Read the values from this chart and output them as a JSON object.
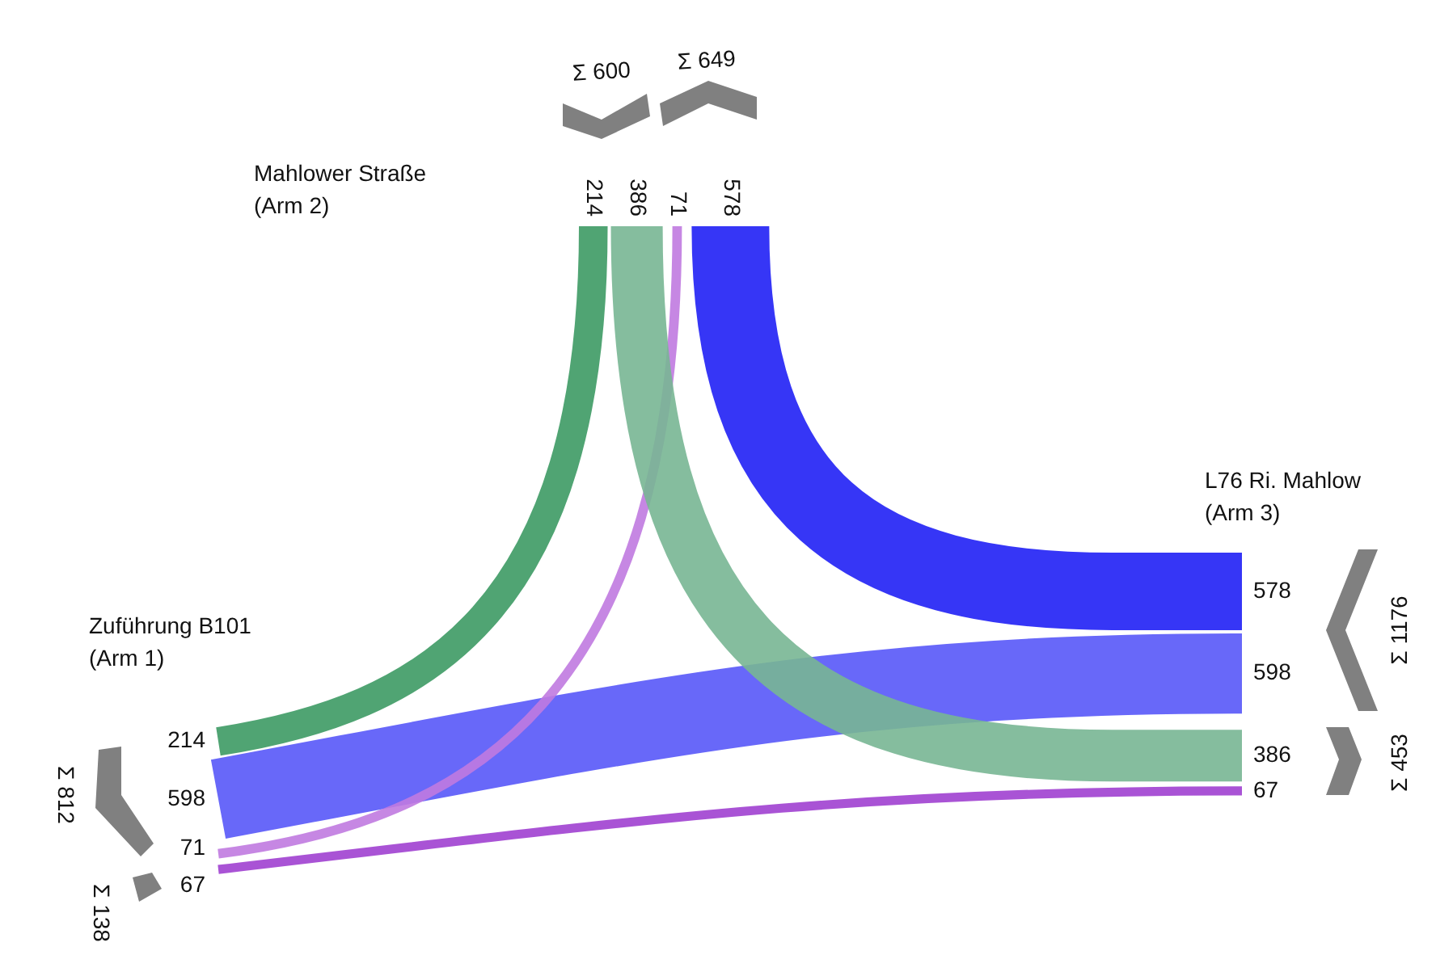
{
  "chart_data": {
    "type": "other",
    "categories": [
      "Zuführung B101\n(Arm 1)",
      "Mahlower Straße\n(Arm 2)",
      "L76 Ri. Mahlow\n(Arm 3)"
    ],
    "series": [
      {
        "color": "#3d9a64",
        "values": [
          214,
          214,
          null
        ]
      },
      {
        "color": "#78b694",
        "values": [
          null,
          386,
          386
        ]
      },
      {
        "color": "#c07ae0",
        "values": [
          71,
          71,
          null
        ]
      },
      {
        "color": "#2020f5",
        "values": [
          null,
          578,
          578
        ]
      },
      {
        "color": "#5858f8",
        "values": [
          598,
          null,
          598
        ]
      },
      {
        "color": "#a040d0",
        "values": [
          67,
          null,
          67
        ]
      }
    ],
    "annotations": [
      "Σ 812",
      "Σ 138",
      "Σ 600",
      "Σ 649",
      "Σ 1176",
      "Σ 453"
    ],
    "data_labels": true
  }
}
